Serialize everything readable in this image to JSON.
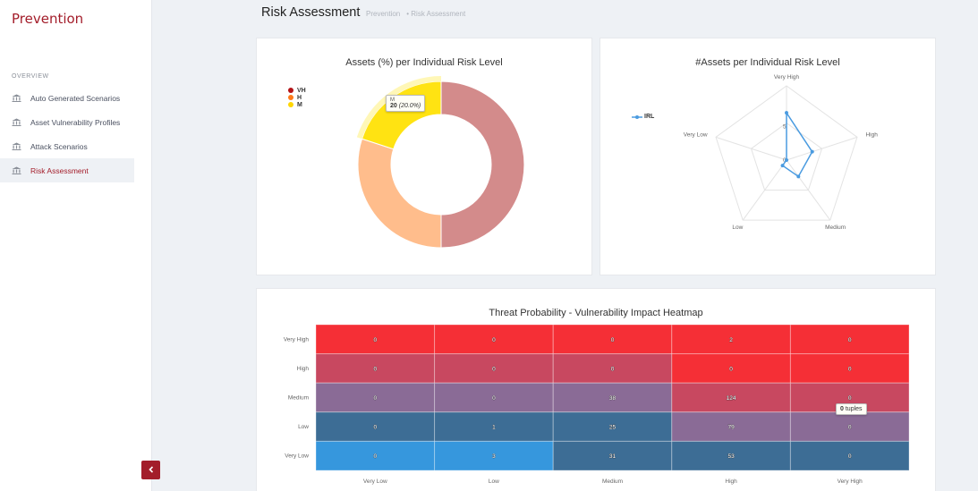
{
  "sidebar": {
    "brand": "Prevention",
    "section": "OVERVIEW",
    "items": [
      {
        "label": "Auto Generated Scenarios",
        "icon": "bank-icon"
      },
      {
        "label": "Asset Vulnerability Profiles",
        "icon": "bank-icon"
      },
      {
        "label": "Attack Scenarios",
        "icon": "bank-icon"
      },
      {
        "label": "Risk Assessment",
        "icon": "bank-icon",
        "active": true
      }
    ],
    "collapse_icon": "chevron-left-icon"
  },
  "header": {
    "title": "Risk Assessment",
    "breadcrumb": [
      "Prevention",
      "• Risk Assessment"
    ]
  },
  "colors": {
    "accent": "#a31d2a",
    "vh": "#c0161e",
    "h": "#ff8a3c",
    "m": "#ffd600"
  },
  "donut": {
    "title": "Assets (%) per Individual Risk Level",
    "legend": [
      {
        "label": "VH",
        "color": "#b31217"
      },
      {
        "label": "H",
        "color": "#ff7a1a"
      },
      {
        "label": "M",
        "color": "#ffd600"
      }
    ],
    "tooltip": {
      "name": "M",
      "value": "20",
      "pct": "(20.0%)"
    }
  },
  "radar": {
    "title": "#Assets per Individual Risk Level",
    "legend": "IRL",
    "axes": [
      "Very High",
      "High",
      "Medium",
      "Low",
      "Very Low"
    ],
    "tick_labels": [
      "5",
      "0"
    ]
  },
  "heatmap": {
    "title": "Threat Probability - Vulnerability Impact Heatmap",
    "tooltip": {
      "value": "0",
      "unit": "tuples"
    }
  },
  "chart_data": [
    {
      "type": "pie",
      "title": "Assets (%) per Individual Risk Level",
      "categories": [
        "VH",
        "H",
        "M"
      ],
      "values": [
        50,
        30,
        20
      ],
      "colors": [
        "#d38b8b",
        "#ffbd8c",
        "#ffe312"
      ]
    },
    {
      "type": "line",
      "subtype": "radar",
      "title": "#Assets per Individual Risk Level",
      "categories": [
        "Very High",
        "High",
        "Medium",
        "Low",
        "Very Low"
      ],
      "series": [
        {
          "name": "IRL",
          "values": [
            7,
            4,
            3,
            1,
            0
          ]
        }
      ],
      "rmax": 11
    },
    {
      "type": "heatmap",
      "title": "Threat Probability - Vulnerability Impact Heatmap",
      "x": [
        "Very Low",
        "Low",
        "Medium",
        "High",
        "Very High"
      ],
      "y": [
        "Very High",
        "High",
        "Medium",
        "Low",
        "Very Low"
      ],
      "values": [
        [
          0,
          0,
          0,
          2,
          0
        ],
        [
          0,
          0,
          0,
          0,
          0
        ],
        [
          0,
          0,
          38,
          124,
          0
        ],
        [
          0,
          1,
          25,
          79,
          0
        ],
        [
          0,
          3,
          31,
          53,
          0
        ]
      ],
      "colors": [
        [
          "#f52f36",
          "#f52f36",
          "#f52f36",
          "#f52f36",
          "#f52f36"
        ],
        [
          "#c84860",
          "#c84860",
          "#c84860",
          "#f52f36",
          "#f52f36"
        ],
        [
          "#8a6b96",
          "#8a6b96",
          "#8a6b96",
          "#c84860",
          "#c84860"
        ],
        [
          "#3d6d95",
          "#3d6d95",
          "#3d6d95",
          "#8a6b96",
          "#8a6b96"
        ],
        [
          "#3697dd",
          "#3697dd",
          "#3d6d95",
          "#3d6d95",
          "#3d6d95"
        ]
      ]
    }
  ]
}
